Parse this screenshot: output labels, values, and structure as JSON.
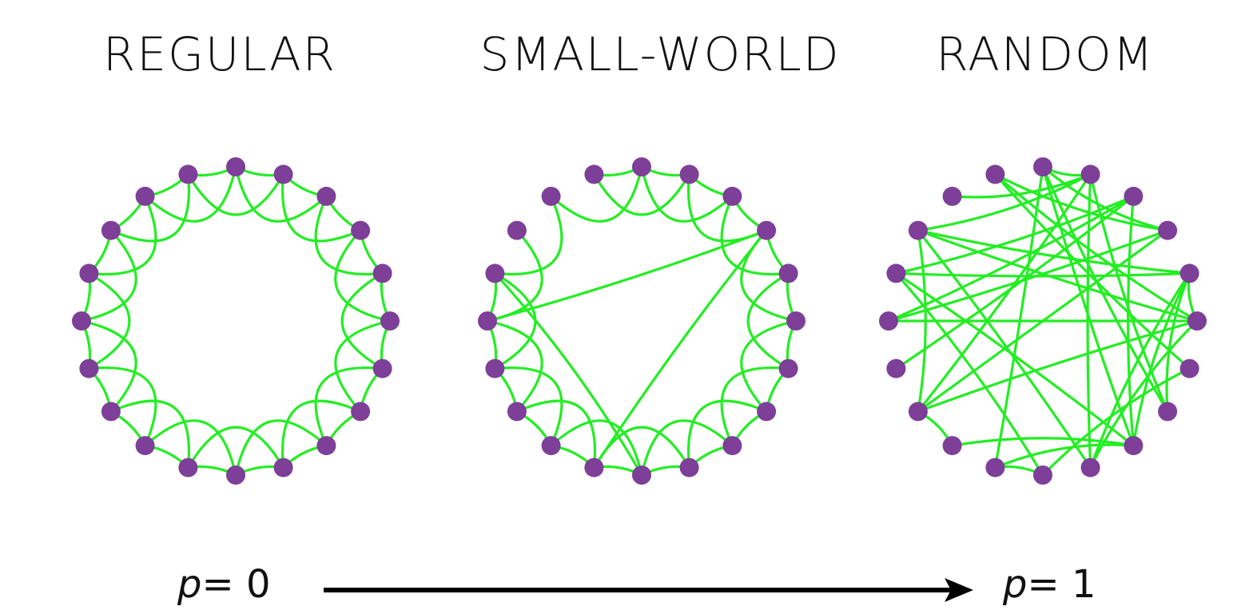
{
  "panels": [
    {
      "title": "REGULAR",
      "nodes": 20,
      "neighbors_each_side": 2,
      "rewired": []
    },
    {
      "title": "SMALL-WORLD",
      "nodes": 20,
      "neighbors_each_side": 2,
      "rewired": [
        [
          3,
          11
        ],
        [
          3,
          15
        ],
        [
          10,
          16
        ]
      ],
      "removed": [
        [
          17,
          19
        ],
        [
          18,
          19
        ],
        [
          17,
          18
        ],
        [
          16,
          17
        ]
      ]
    },
    {
      "title": "RANDOM",
      "nodes": 20,
      "neighbors_each_side": 2,
      "random": true
    }
  ],
  "axis": {
    "start": {
      "var": "p",
      "text": "= 0"
    },
    "end": {
      "var": "p",
      "text": "= 1"
    }
  },
  "colors": {
    "node": "#7d3f98",
    "edge": "#22ee22",
    "text": "#111111",
    "arrow": "#000000"
  },
  "icons": {
    "arrow": "right-arrow-icon"
  }
}
